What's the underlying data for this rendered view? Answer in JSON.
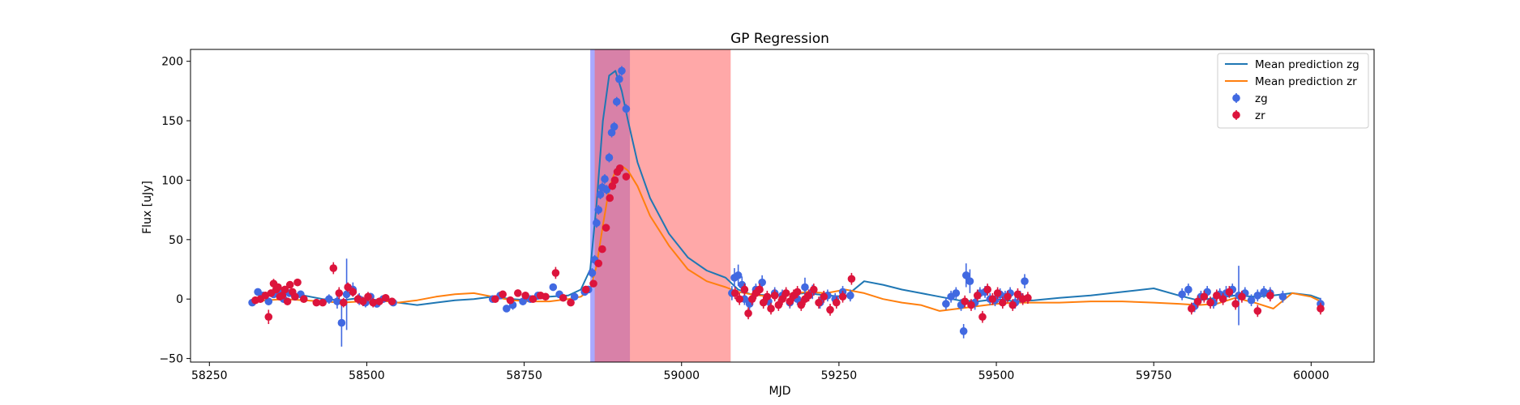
{
  "chart_data": {
    "type": "scatter",
    "title": "GP Regression",
    "xlabel": "MJD",
    "ylabel": "Flux [uJy]",
    "xlim": [
      58220,
      60100
    ],
    "ylim": [
      -53,
      210
    ],
    "xticks": [
      58250,
      58500,
      58750,
      59000,
      59250,
      59500,
      59750,
      60000
    ],
    "yticks": [
      -50,
      0,
      50,
      100,
      150,
      200
    ],
    "legend_position": "upper-right",
    "shaded_regions": [
      {
        "x0": 58855,
        "x1": 58918,
        "color": "#6f6fff",
        "opacity": 0.6
      },
      {
        "x0": 58862,
        "x1": 59078,
        "color": "#ff6060",
        "opacity": 0.55
      }
    ],
    "series": [
      {
        "name": "Mean prediction zg",
        "kind": "line",
        "color": "#1f77b4",
        "x": [
          58320,
          58340,
          58370,
          58400,
          58430,
          58460,
          58490,
          58520,
          58550,
          58580,
          58610,
          58640,
          58670,
          58700,
          58730,
          58760,
          58790,
          58820,
          58840,
          58855,
          58865,
          58875,
          58885,
          58895,
          58905,
          58915,
          58930,
          58950,
          58980,
          59010,
          59040,
          59070,
          59090,
          59110,
          59140,
          59170,
          59200,
          59230,
          59260,
          59290,
          59320,
          59350,
          59380,
          59410,
          59440,
          59470,
          59500,
          59530,
          59560,
          59600,
          59650,
          59700,
          59750,
          59790,
          59820,
          59850,
          59880,
          59910,
          59940,
          59970,
          60000,
          60015
        ],
        "y": [
          -1,
          3,
          4,
          3,
          0,
          -1,
          1,
          -1,
          -3,
          -5,
          -3,
          -1,
          0,
          2,
          0,
          -1,
          2,
          3,
          8,
          25,
          80,
          150,
          188,
          192,
          175,
          150,
          115,
          85,
          55,
          35,
          24,
          18,
          8,
          4,
          3,
          4,
          5,
          3,
          2,
          15,
          12,
          8,
          5,
          2,
          -1,
          -2,
          0,
          -2,
          -1,
          1,
          3,
          6,
          9,
          3,
          -1,
          1,
          3,
          2,
          3,
          5,
          3,
          0
        ]
      },
      {
        "name": "Mean prediction zr",
        "kind": "line",
        "color": "#ff7f0e",
        "x": [
          58320,
          58340,
          58370,
          58400,
          58430,
          58460,
          58490,
          58520,
          58550,
          58580,
          58610,
          58640,
          58670,
          58700,
          58730,
          58760,
          58790,
          58820,
          58840,
          58855,
          58865,
          58875,
          58885,
          58895,
          58905,
          58915,
          58930,
          58950,
          58980,
          59010,
          59040,
          59070,
          59090,
          59110,
          59140,
          59170,
          59200,
          59230,
          59260,
          59290,
          59320,
          59350,
          59380,
          59410,
          59440,
          59470,
          59500,
          59530,
          59560,
          59600,
          59650,
          59700,
          59750,
          59790,
          59820,
          59850,
          59880,
          59910,
          59940,
          59970,
          60000,
          60015
        ],
        "y": [
          -2,
          -1,
          0,
          -1,
          -2,
          -3,
          -2,
          -1,
          -3,
          -1,
          2,
          4,
          5,
          2,
          -1,
          -2,
          -2,
          0,
          2,
          8,
          28,
          62,
          93,
          108,
          112,
          108,
          95,
          70,
          45,
          25,
          15,
          10,
          6,
          4,
          2,
          4,
          6,
          5,
          8,
          5,
          0,
          -3,
          -5,
          -10,
          -8,
          -6,
          -4,
          -3,
          -3,
          -3,
          -2,
          -2,
          -3,
          -4,
          -5,
          -4,
          1,
          -3,
          -8,
          5,
          2,
          -2
        ]
      },
      {
        "name": "zg",
        "kind": "errorbar",
        "color": "#4169e1",
        "x": [
          58318,
          58327,
          58335,
          58344,
          58352,
          58360,
          58368,
          58377,
          58386,
          58395,
          58440,
          58453,
          58460,
          58468,
          58478,
          58488,
          58498,
          58506,
          58516,
          58526,
          58542,
          58700,
          58712,
          58722,
          58732,
          58748,
          58760,
          58772,
          58796,
          58806,
          58830,
          58846,
          58852,
          58858,
          58862,
          58865,
          58868,
          58871,
          58874,
          58878,
          58881,
          58885,
          58889,
          58893,
          58897,
          58901,
          58905,
          58912,
          59080,
          59084,
          59090,
          59096,
          59100,
          59108,
          59118,
          59128,
          59138,
          59148,
          59160,
          59172,
          59184,
          59196,
          59208,
          59220,
          59232,
          59244,
          59256,
          59268,
          59420,
          59428,
          59436,
          59444,
          59448,
          59452,
          59458,
          59466,
          59474,
          59482,
          59490,
          59498,
          59506,
          59514,
          59522,
          59530,
          59538,
          59545,
          59795,
          59805,
          59815,
          59825,
          59835,
          59845,
          59855,
          59865,
          59875,
          59885,
          59895,
          59905,
          59915,
          59925,
          59935,
          59955,
          60015
        ],
        "y": [
          -3,
          6,
          3,
          -2,
          4,
          6,
          0,
          5,
          2,
          4,
          0,
          -2,
          -20,
          4,
          8,
          0,
          -3,
          2,
          -4,
          0,
          -3,
          0,
          3,
          -8,
          -5,
          -2,
          0,
          3,
          10,
          4,
          2,
          6,
          8,
          22,
          33,
          64,
          75,
          88,
          94,
          101,
          92,
          119,
          140,
          145,
          166,
          185,
          192,
          160,
          5,
          18,
          20,
          12,
          0,
          -4,
          8,
          14,
          -2,
          5,
          3,
          -3,
          0,
          10,
          6,
          -3,
          3,
          0,
          6,
          3,
          -4,
          2,
          5,
          -5,
          -27,
          20,
          15,
          -3,
          5,
          6,
          0,
          -1,
          4,
          2,
          5,
          -3,
          2,
          15,
          4,
          8,
          -6,
          2,
          6,
          -3,
          4,
          5,
          8,
          3,
          5,
          -1,
          3,
          6,
          5,
          2,
          -4
        ],
        "err": [
          3,
          3,
          3,
          3,
          3,
          4,
          3,
          3,
          3,
          3,
          4,
          6,
          20,
          30,
          6,
          5,
          4,
          3,
          3,
          3,
          3,
          3,
          3,
          3,
          4,
          3,
          3,
          3,
          3,
          3,
          3,
          3,
          3,
          4,
          4,
          4,
          4,
          4,
          4,
          4,
          4,
          4,
          4,
          4,
          4,
          4,
          4,
          4,
          6,
          8,
          9,
          7,
          5,
          5,
          5,
          6,
          5,
          5,
          5,
          5,
          5,
          8,
          6,
          5,
          5,
          5,
          5,
          5,
          5,
          5,
          5,
          5,
          6,
          10,
          10,
          6,
          5,
          5,
          5,
          5,
          5,
          5,
          5,
          5,
          5,
          6,
          5,
          5,
          5,
          5,
          5,
          5,
          5,
          6,
          5,
          25,
          5,
          5,
          5,
          5,
          5,
          5,
          5
        ]
      },
      {
        "name": "zr",
        "kind": "errorbar",
        "color": "#dc143c",
        "x": [
          58323,
          58331,
          58339,
          58344,
          58348,
          58352,
          58356,
          58359,
          58362,
          58366,
          58370,
          58374,
          58378,
          58382,
          58386,
          58390,
          58400,
          58420,
          58430,
          58447,
          58456,
          58463,
          58470,
          58478,
          58486,
          58494,
          58502,
          58510,
          58520,
          58530,
          58540,
          58704,
          58716,
          58728,
          58740,
          58752,
          58764,
          58776,
          58784,
          58800,
          58812,
          58824,
          58848,
          58860,
          58868,
          58874,
          58880,
          58886,
          58890,
          58894,
          58898,
          58902,
          58912,
          59085,
          59092,
          59100,
          59106,
          59112,
          59118,
          59124,
          59130,
          59136,
          59142,
          59148,
          59154,
          59160,
          59166,
          59172,
          59178,
          59184,
          59190,
          59196,
          59202,
          59210,
          59218,
          59226,
          59236,
          59246,
          59256,
          59270,
          59450,
          59460,
          59470,
          59478,
          59486,
          59494,
          59502,
          59510,
          59518,
          59526,
          59534,
          59542,
          59550,
          59810,
          59820,
          59830,
          59840,
          59850,
          59860,
          59870,
          59880,
          59890,
          59915,
          59935,
          60015
        ],
        "y": [
          -1,
          0,
          3,
          -15,
          5,
          13,
          8,
          10,
          2,
          3,
          8,
          -2,
          12,
          6,
          2,
          14,
          0,
          -3,
          -3,
          26,
          5,
          -3,
          10,
          6,
          0,
          -2,
          2,
          -3,
          -2,
          1,
          -2,
          0,
          4,
          -1,
          5,
          3,
          0,
          3,
          2,
          22,
          1,
          -3,
          8,
          13,
          30,
          42,
          60,
          85,
          95,
          100,
          107,
          110,
          103,
          5,
          0,
          8,
          -12,
          0,
          5,
          8,
          -3,
          2,
          -8,
          3,
          -5,
          0,
          5,
          -2,
          3,
          6,
          -5,
          0,
          3,
          8,
          -3,
          2,
          -9,
          -3,
          2,
          17,
          -2,
          -5,
          3,
          -15,
          8,
          0,
          5,
          -3,
          2,
          -5,
          4,
          0,
          1,
          -8,
          -2,
          2,
          -3,
          3,
          0,
          6,
          -4,
          2,
          -10,
          3,
          -8
        ],
        "err": [
          3,
          3,
          3,
          6,
          3,
          4,
          3,
          3,
          3,
          3,
          3,
          3,
          3,
          3,
          3,
          3,
          3,
          3,
          3,
          5,
          5,
          4,
          4,
          4,
          4,
          4,
          4,
          4,
          3,
          3,
          3,
          3,
          3,
          3,
          3,
          3,
          3,
          3,
          3,
          5,
          3,
          3,
          3,
          3,
          3,
          3,
          3,
          3,
          3,
          3,
          3,
          3,
          3,
          5,
          5,
          5,
          5,
          5,
          5,
          5,
          5,
          5,
          5,
          5,
          5,
          5,
          5,
          5,
          5,
          5,
          5,
          5,
          5,
          5,
          5,
          5,
          5,
          5,
          5,
          5,
          5,
          5,
          5,
          5,
          5,
          5,
          5,
          5,
          5,
          5,
          5,
          5,
          5,
          5,
          5,
          5,
          5,
          5,
          5,
          5,
          5,
          5,
          5,
          5,
          5
        ]
      }
    ]
  }
}
